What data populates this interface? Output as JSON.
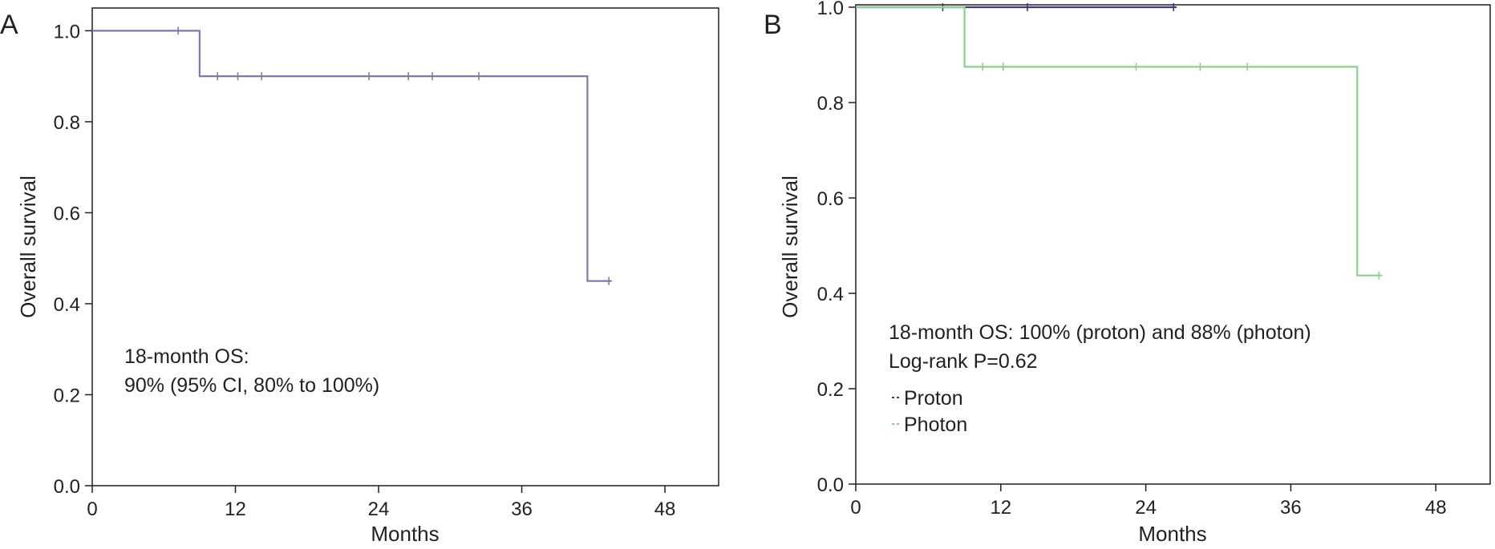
{
  "chart_data": [
    {
      "panel_label": "A",
      "type": "line",
      "subtype": "kaplan-meier",
      "xlabel": "Months",
      "ylabel": "Overall survival",
      "xlim": [
        0,
        52.5
      ],
      "ylim": [
        0,
        1.05
      ],
      "xticks": [
        0,
        12,
        24,
        36,
        48
      ],
      "yticks": [
        0.0,
        0.2,
        0.4,
        0.6,
        0.8,
        1.0
      ],
      "ytick_labels": [
        "0.0",
        "0.2",
        "0.4",
        "0.6",
        "0.8",
        "1.0"
      ],
      "grid": false,
      "annotation_lines": [
        "18-month OS:",
        "90% (95% CI, 80% to 100%)"
      ],
      "series": [
        {
          "color": "#7b7ca8",
          "steps": [
            [
              0,
              1.0
            ],
            [
              9,
              1.0
            ],
            [
              9,
              0.9
            ],
            [
              41.5,
              0.9
            ],
            [
              41.5,
              0.45
            ],
            [
              43.5,
              0.45
            ]
          ],
          "censor_points": [
            [
              7.2,
              1.0
            ],
            [
              10.5,
              0.9
            ],
            [
              12.2,
              0.9
            ],
            [
              14.2,
              0.9
            ],
            [
              23.2,
              0.9
            ],
            [
              26.5,
              0.9
            ],
            [
              28.5,
              0.9
            ],
            [
              32.4,
              0.9
            ],
            [
              43.3,
              0.45
            ]
          ]
        }
      ]
    },
    {
      "panel_label": "B",
      "type": "line",
      "subtype": "kaplan-meier",
      "xlabel": "Months",
      "ylabel": "Overall survival",
      "xlim": [
        0,
        52.5
      ],
      "ylim": [
        0,
        1.005
      ],
      "xticks": [
        0,
        12,
        24,
        36,
        48
      ],
      "yticks": [
        0.0,
        0.2,
        0.4,
        0.6,
        0.8,
        1.0
      ],
      "ytick_labels": [
        "0.0",
        "0.2",
        "0.4",
        "0.6",
        "0.8",
        "1.0"
      ],
      "grid": false,
      "legend_position": "lower-left",
      "annotation_lines": [
        "18-month OS: 100% (proton) and 88% (photon)",
        "Log-rank P=0.62"
      ],
      "series": [
        {
          "name": "Proton",
          "color": "#3a3a6e",
          "steps": [
            [
              0,
              1.0
            ],
            [
              26.5,
              1.0
            ]
          ],
          "censor_points": [
            [
              7.2,
              1.0
            ],
            [
              14.2,
              1.0
            ],
            [
              26.3,
              1.0
            ]
          ]
        },
        {
          "name": "Photon",
          "color": "#8fce8c",
          "steps": [
            [
              0,
              1.0
            ],
            [
              9,
              1.0
            ],
            [
              9,
              0.875
            ],
            [
              41.5,
              0.875
            ],
            [
              41.5,
              0.4375
            ],
            [
              43.5,
              0.4375
            ]
          ],
          "censor_points": [
            [
              10.5,
              0.875
            ],
            [
              12.2,
              0.875
            ],
            [
              23.2,
              0.875
            ],
            [
              28.5,
              0.875
            ],
            [
              32.4,
              0.875
            ],
            [
              43.3,
              0.4375
            ]
          ]
        }
      ]
    }
  ]
}
